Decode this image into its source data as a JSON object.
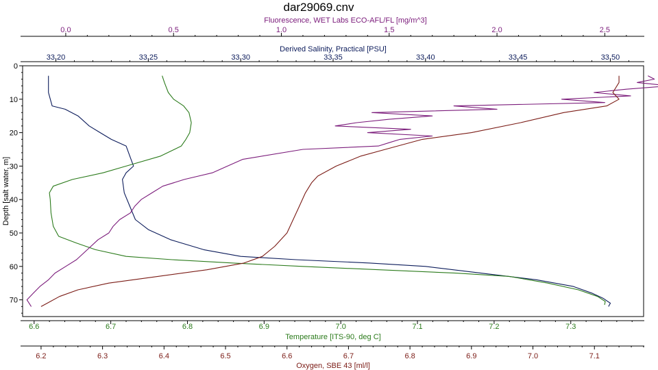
{
  "window": {
    "title": "dar29069.cnv"
  },
  "colors": {
    "fluorescence": "#7a1a7a",
    "salinity": "#0a1a5a",
    "temperature": "#2a7a1a",
    "oxygen": "#7a1a14",
    "frame": "#000000",
    "background": "#ffffff"
  },
  "chart_data": {
    "type": "line",
    "title": "dar29069.cnv",
    "grid": false,
    "legend": "none",
    "y_axis": {
      "label": "Depth [salt water, m]",
      "range": [
        75,
        0
      ],
      "ticks": [
        0,
        10,
        20,
        30,
        40,
        50,
        60,
        70
      ],
      "inverted": true
    },
    "x_axes": [
      {
        "key": "fluorescence",
        "label": "Fluorescence, WET Labs ECO-AFL/FL [mg/m^3]",
        "position": "top-outer",
        "range": [
          -0.2,
          2.68
        ],
        "ticks": [
          "0.0",
          "0.5",
          "1.0",
          "1.5",
          "2.0",
          "2.5"
        ]
      },
      {
        "key": "salinity",
        "label": "Derived Salinity, Practical [PSU]",
        "position": "top-inner",
        "range": [
          33.182,
          33.518
        ],
        "ticks": [
          "33.20",
          "33.25",
          "33.30",
          "33.35",
          "33.40",
          "33.45",
          "33.50"
        ]
      },
      {
        "key": "temperature",
        "label": "Temperature [ITS-90, deg C]",
        "position": "bottom-inner",
        "range": [
          6.585,
          7.395
        ],
        "ticks": [
          "6.6",
          "6.7",
          "6.8",
          "6.9",
          "7.0",
          "7.1",
          "7.2",
          "7.3"
        ]
      },
      {
        "key": "oxygen",
        "label": "Oxygen, SBE 43 [ml/l]",
        "position": "bottom-outer",
        "range": [
          6.17,
          7.18
        ],
        "ticks": [
          "6.2",
          "6.3",
          "6.4",
          "6.5",
          "6.6",
          "6.7",
          "6.8",
          "6.9",
          "7.0",
          "7.1"
        ]
      }
    ],
    "series": [
      {
        "axis": "salinity",
        "points": [
          [
            33.196,
            3
          ],
          [
            33.196,
            5
          ],
          [
            33.196,
            8
          ],
          [
            33.197,
            10
          ],
          [
            33.198,
            12
          ],
          [
            33.205,
            13
          ],
          [
            33.212,
            15
          ],
          [
            33.218,
            18
          ],
          [
            33.224,
            20
          ],
          [
            33.23,
            22
          ],
          [
            33.238,
            24
          ],
          [
            33.24,
            27
          ],
          [
            33.242,
            30
          ],
          [
            33.238,
            32
          ],
          [
            33.236,
            34
          ],
          [
            33.237,
            38
          ],
          [
            33.24,
            42
          ],
          [
            33.243,
            46
          ],
          [
            33.25,
            49
          ],
          [
            33.262,
            52
          ],
          [
            33.28,
            55
          ],
          [
            33.3,
            57
          ],
          [
            33.33,
            58
          ],
          [
            33.37,
            59
          ],
          [
            33.4,
            60
          ],
          [
            33.43,
            62
          ],
          [
            33.46,
            64
          ],
          [
            33.48,
            66
          ],
          [
            33.49,
            68
          ],
          [
            33.496,
            69.5
          ],
          [
            33.5,
            71
          ],
          [
            33.499,
            72
          ]
        ]
      },
      {
        "axis": "temperature",
        "points": [
          [
            6.767,
            3
          ],
          [
            6.77,
            5
          ],
          [
            6.775,
            8
          ],
          [
            6.782,
            10
          ],
          [
            6.795,
            12
          ],
          [
            6.802,
            14
          ],
          [
            6.805,
            17
          ],
          [
            6.803,
            20
          ],
          [
            6.798,
            22
          ],
          [
            6.792,
            24
          ],
          [
            6.765,
            27
          ],
          [
            6.72,
            30
          ],
          [
            6.69,
            32
          ],
          [
            6.65,
            34
          ],
          [
            6.625,
            36
          ],
          [
            6.62,
            38
          ],
          [
            6.621,
            40
          ],
          [
            6.622,
            44
          ],
          [
            6.625,
            48
          ],
          [
            6.632,
            51
          ],
          [
            6.655,
            53
          ],
          [
            6.68,
            55
          ],
          [
            6.72,
            57
          ],
          [
            6.78,
            58
          ],
          [
            6.86,
            59
          ],
          [
            6.95,
            60
          ],
          [
            7.05,
            61
          ],
          [
            7.15,
            62
          ],
          [
            7.22,
            63
          ],
          [
            7.27,
            65
          ],
          [
            7.31,
            67
          ],
          [
            7.335,
            69
          ],
          [
            7.345,
            70.5
          ],
          [
            7.344,
            71.5
          ]
        ]
      },
      {
        "axis": "fluorescence",
        "points": [
          [
            2.7,
            3
          ],
          [
            2.73,
            4
          ],
          [
            2.65,
            5
          ],
          [
            2.8,
            6
          ],
          [
            2.6,
            7
          ],
          [
            2.45,
            8
          ],
          [
            2.62,
            9
          ],
          [
            2.3,
            10
          ],
          [
            2.5,
            11
          ],
          [
            1.8,
            12
          ],
          [
            2.0,
            13
          ],
          [
            1.42,
            14
          ],
          [
            1.7,
            15
          ],
          [
            1.5,
            16
          ],
          [
            1.35,
            17
          ],
          [
            1.25,
            18
          ],
          [
            1.6,
            19
          ],
          [
            1.4,
            20
          ],
          [
            1.7,
            21
          ],
          [
            1.55,
            22
          ],
          [
            1.5,
            23
          ],
          [
            1.45,
            24
          ],
          [
            1.1,
            25
          ],
          [
            0.82,
            28
          ],
          [
            0.75,
            30
          ],
          [
            0.68,
            32
          ],
          [
            0.55,
            34
          ],
          [
            0.45,
            36
          ],
          [
            0.4,
            38
          ],
          [
            0.35,
            40
          ],
          [
            0.32,
            42
          ],
          [
            0.3,
            44
          ],
          [
            0.25,
            46
          ],
          [
            0.22,
            48
          ],
          [
            0.2,
            50
          ],
          [
            0.15,
            52
          ],
          [
            0.1,
            55
          ],
          [
            0.05,
            58
          ],
          [
            0.0,
            60
          ],
          [
            -0.05,
            62
          ],
          [
            -0.08,
            64
          ],
          [
            -0.12,
            66
          ],
          [
            -0.15,
            68
          ],
          [
            -0.18,
            70
          ],
          [
            -0.16,
            72
          ]
        ]
      },
      {
        "axis": "oxygen",
        "points": [
          [
            7.14,
            3
          ],
          [
            7.14,
            5
          ],
          [
            7.13,
            8
          ],
          [
            7.14,
            10
          ],
          [
            7.12,
            12
          ],
          [
            7.05,
            14
          ],
          [
            6.98,
            17
          ],
          [
            6.9,
            20
          ],
          [
            6.82,
            22
          ],
          [
            6.76,
            25
          ],
          [
            6.72,
            27
          ],
          [
            6.68,
            30
          ],
          [
            6.65,
            33
          ],
          [
            6.64,
            35
          ],
          [
            6.63,
            38
          ],
          [
            6.62,
            42
          ],
          [
            6.61,
            46
          ],
          [
            6.6,
            50
          ],
          [
            6.58,
            54
          ],
          [
            6.56,
            57
          ],
          [
            6.53,
            59
          ],
          [
            6.47,
            61
          ],
          [
            6.39,
            63
          ],
          [
            6.31,
            65
          ],
          [
            6.26,
            67
          ],
          [
            6.23,
            69
          ],
          [
            6.21,
            71
          ],
          [
            6.2,
            72
          ]
        ]
      }
    ]
  }
}
